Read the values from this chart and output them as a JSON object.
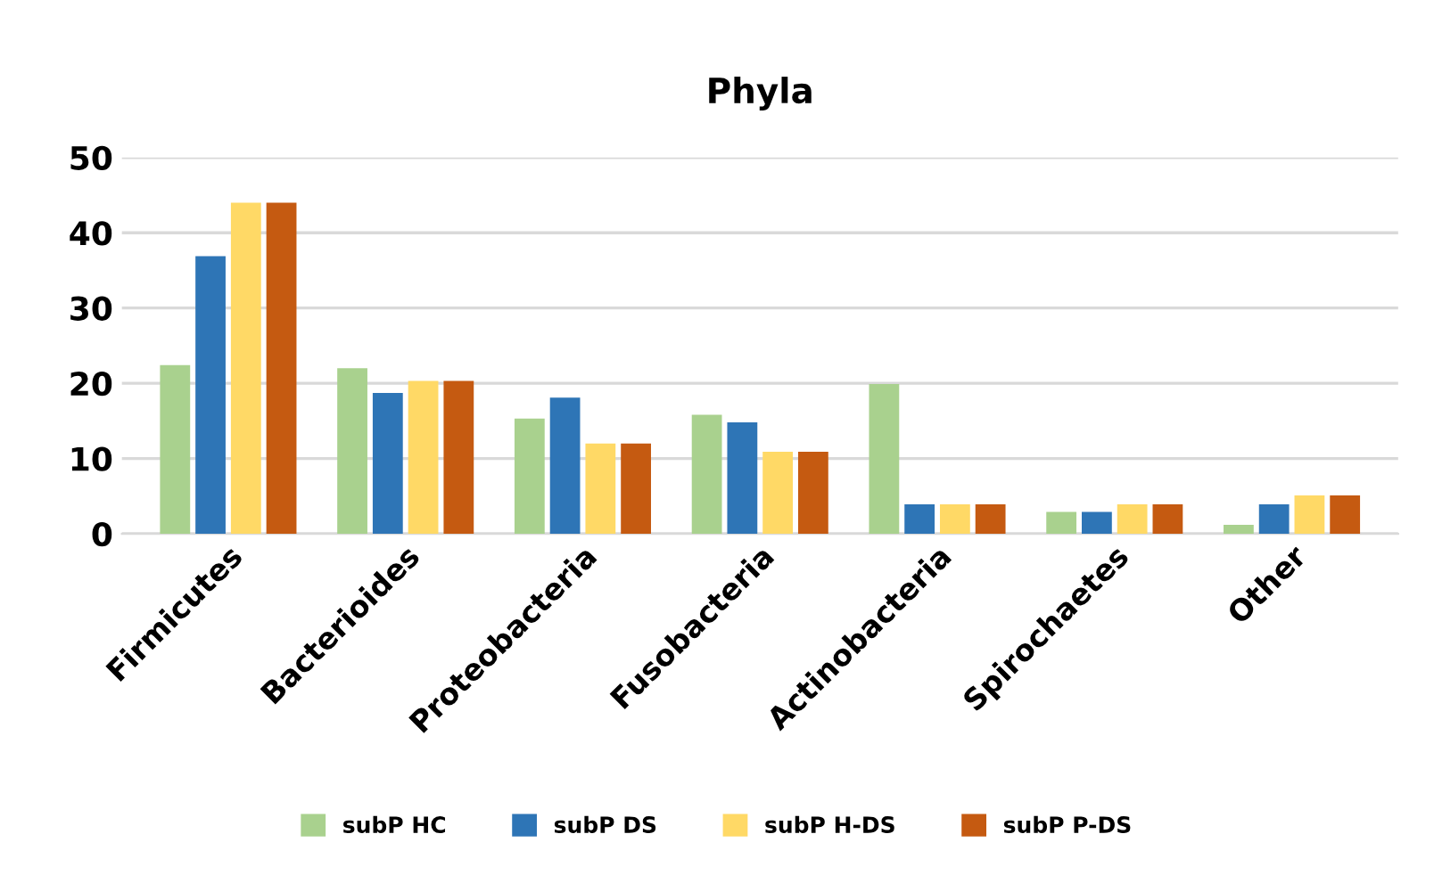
{
  "chart_data": {
    "type": "bar",
    "title": "Phyla",
    "categories": [
      "Firmicutes",
      "Bacterioides",
      "Proteobacteria",
      "Fusobacteria",
      "Actinobacteria",
      "Spirochaetes",
      "Other"
    ],
    "series": [
      {
        "name": "subP HC",
        "color": "#a9d18e",
        "values": [
          22.4,
          22,
          15.3,
          15.8,
          19.9,
          2.9,
          1.2
        ]
      },
      {
        "name": "subP DS",
        "color": "#2e75b6",
        "values": [
          36.9,
          18.7,
          18.1,
          14.8,
          3.9,
          2.9,
          3.9
        ]
      },
      {
        "name": "subP H-DS",
        "color": "#ffd966",
        "values": [
          44,
          20.3,
          12,
          10.9,
          3.9,
          3.9,
          5.1
        ]
      },
      {
        "name": "subP P-DS",
        "color": "#c55a11",
        "values": [
          44,
          20.3,
          12,
          10.9,
          3.9,
          3.9,
          5.1
        ]
      }
    ],
    "ylim": [
      0,
      50
    ],
    "yticks": [
      0,
      10,
      20,
      30,
      40,
      50
    ],
    "grid": "y",
    "legend": "bottom"
  }
}
